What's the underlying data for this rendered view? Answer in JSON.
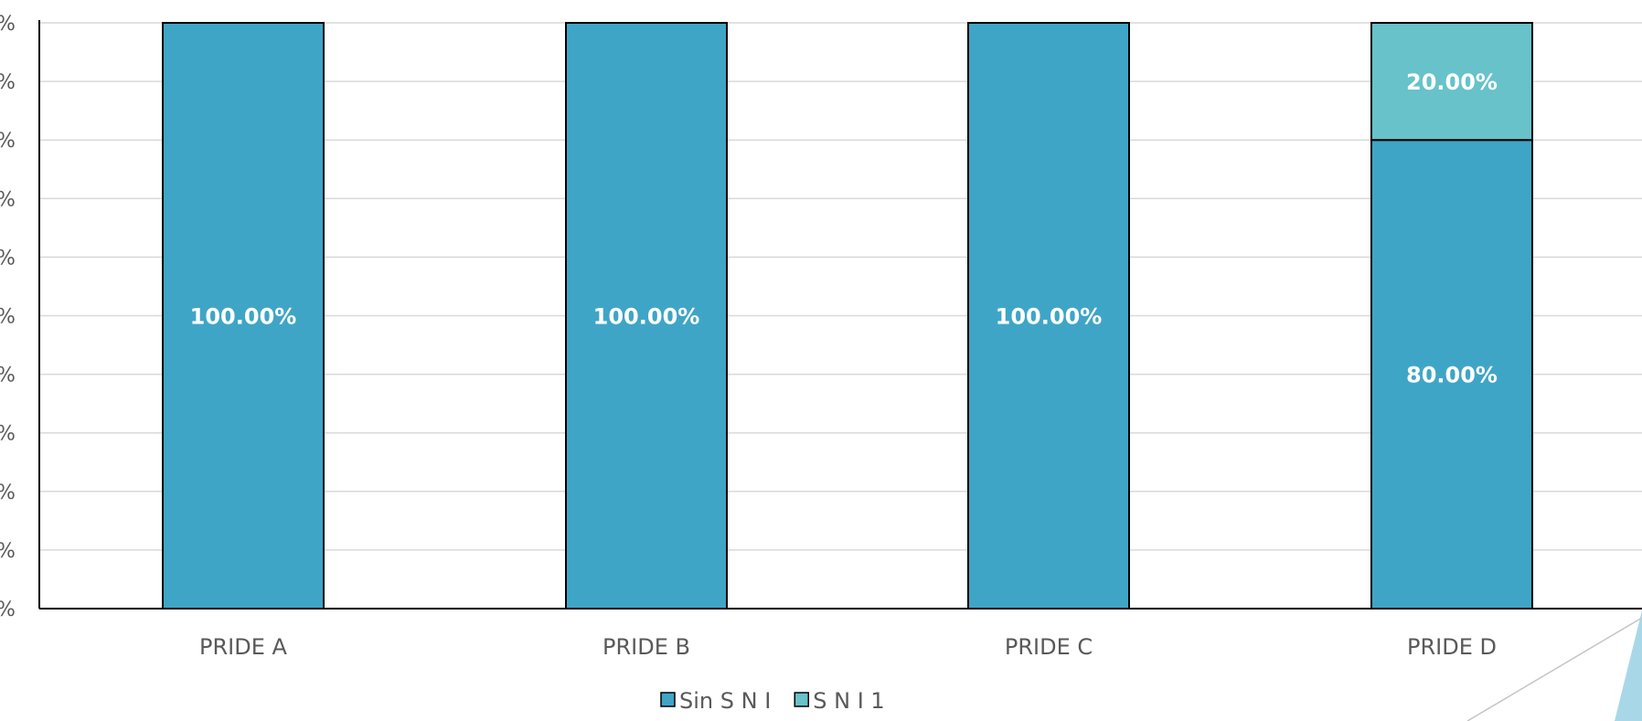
{
  "chart_data": {
    "type": "bar",
    "stacked": true,
    "categories": [
      "PRIDE A",
      "PRIDE B",
      "PRIDE C",
      "PRIDE D"
    ],
    "series": [
      {
        "name": "Sin S N I",
        "values": [
          100,
          100,
          100,
          80
        ],
        "labels": [
          "100.00%",
          "100.00%",
          "100.00%",
          "80.00%"
        ]
      },
      {
        "name": "S N I 1",
        "values": [
          0,
          0,
          0,
          20
        ],
        "labels": [
          "",
          "",
          "",
          "20.00%"
        ]
      }
    ],
    "ylim": [
      0,
      100
    ],
    "y_tick_label": "%",
    "grid": true,
    "legend": "bottom",
    "colors": [
      "#3FA5C6",
      "#67C2CA"
    ]
  }
}
